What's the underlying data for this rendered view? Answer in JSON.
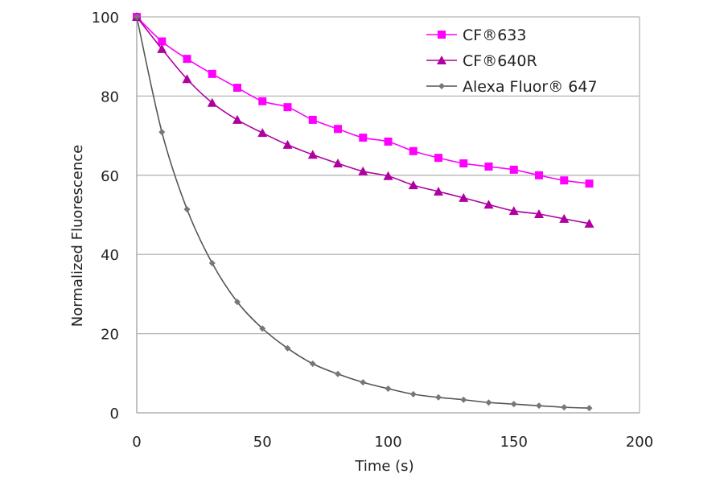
{
  "chart_data": {
    "type": "line",
    "xlabel": "Time (s)",
    "ylabel": "Normalized Fluorescence",
    "xlim": [
      0,
      200
    ],
    "ylim": [
      0,
      100
    ],
    "xticks": [
      0,
      50,
      100,
      150,
      200
    ],
    "yticks": [
      0,
      20,
      40,
      60,
      80,
      100
    ],
    "grid": "horizontal",
    "legend": "top-right",
    "x": [
      0,
      10,
      20,
      30,
      40,
      50,
      60,
      70,
      80,
      90,
      100,
      110,
      120,
      130,
      140,
      150,
      160,
      170,
      180
    ],
    "series": [
      {
        "name": "CF®633",
        "color": "#ff00ff",
        "marker": "square",
        "values": [
          100,
          93.8,
          89.4,
          85.6,
          82.1,
          78.7,
          77.2,
          74,
          71.7,
          69.5,
          68.5,
          66.1,
          64.4,
          63,
          62.2,
          61.4,
          60,
          58.7,
          57.9
        ]
      },
      {
        "name": "CF®640R",
        "color": "#b0009f",
        "marker": "triangle",
        "values": [
          100,
          91.9,
          84.3,
          78.3,
          74,
          70.7,
          67.7,
          65.2,
          63,
          61,
          59.8,
          57.5,
          55.9,
          54.3,
          52.6,
          51,
          50.2,
          49,
          47.8
        ]
      },
      {
        "name": "Alexa Fluor® 647",
        "color": "#777777",
        "marker": "diamond",
        "values": [
          100,
          70.9,
          51.4,
          37.8,
          28,
          21.3,
          16.3,
          12.4,
          9.8,
          7.7,
          6.1,
          4.7,
          3.9,
          3.3,
          2.6,
          2.2,
          1.8,
          1.4,
          1.2
        ]
      }
    ]
  }
}
